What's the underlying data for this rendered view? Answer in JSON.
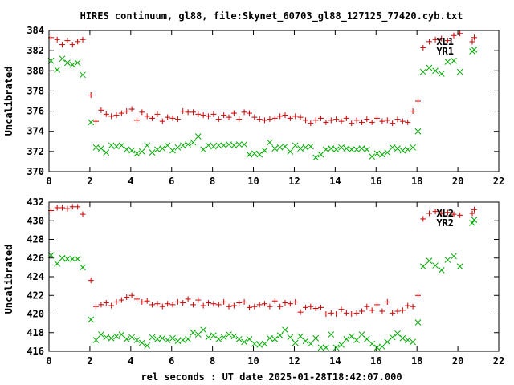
{
  "chart_data": [
    {
      "type": "scatter",
      "title": "HIRES continuum, gl88, file:Skynet_60703_gl88_127125_77420.cyb.txt",
      "xlabel": "",
      "ylabel": "Uncalibrated",
      "xlim": [
        0,
        22
      ],
      "ylim": [
        370,
        384
      ],
      "xticks": [
        0,
        2,
        4,
        6,
        8,
        10,
        12,
        14,
        16,
        18,
        20,
        22
      ],
      "yticks": [
        370,
        372,
        374,
        376,
        378,
        380,
        382,
        384
      ],
      "grid": false,
      "legend_position": "top-right",
      "series": [
        {
          "name": "XL1",
          "marker": "plus",
          "color": "#cc0000",
          "x": [
            0.1,
            0.4,
            0.65,
            0.9,
            1.15,
            1.4,
            1.65,
            2.05,
            2.3,
            2.55,
            2.8,
            3.05,
            3.3,
            3.55,
            3.8,
            4.05,
            4.3,
            4.55,
            4.8,
            5.05,
            5.3,
            5.55,
            5.8,
            6.05,
            6.3,
            6.55,
            6.8,
            7.05,
            7.3,
            7.55,
            7.8,
            8.05,
            8.3,
            8.55,
            8.8,
            9.05,
            9.3,
            9.55,
            9.8,
            10.05,
            10.3,
            10.55,
            10.8,
            11.05,
            11.3,
            11.55,
            11.8,
            12.05,
            12.3,
            12.55,
            12.8,
            13.05,
            13.3,
            13.55,
            13.8,
            14.05,
            14.3,
            14.55,
            14.8,
            15.05,
            15.3,
            15.55,
            15.8,
            16.05,
            16.3,
            16.55,
            16.8,
            17.05,
            17.3,
            17.55,
            17.8,
            18.05,
            18.3,
            18.6,
            18.9,
            19.2,
            19.5,
            19.8,
            20.1,
            20.8
          ],
          "y": [
            383.3,
            383.1,
            382.6,
            383.0,
            382.6,
            382.9,
            383.1,
            377.6,
            375.0,
            376.1,
            375.7,
            375.5,
            375.6,
            375.8,
            376.0,
            376.2,
            375.1,
            375.9,
            375.5,
            375.3,
            375.7,
            375.0,
            375.4,
            375.3,
            375.2,
            376.0,
            375.9,
            375.9,
            375.7,
            375.6,
            375.5,
            375.7,
            375.2,
            375.6,
            375.4,
            375.8,
            375.2,
            375.9,
            375.8,
            375.4,
            375.2,
            375.1,
            375.2,
            375.3,
            375.5,
            375.6,
            375.3,
            375.5,
            375.4,
            375.1,
            374.8,
            375.1,
            375.3,
            374.9,
            375.1,
            375.2,
            375.0,
            375.3,
            374.8,
            375.1,
            374.9,
            375.2,
            374.9,
            375.3,
            375.0,
            375.1,
            374.8,
            375.2,
            375.0,
            374.9,
            376.0,
            377.0,
            382.3,
            382.9,
            383.1,
            383.2,
            383.0,
            383.5,
            383.7,
            383.3
          ]
        },
        {
          "name": "YR1",
          "marker": "x",
          "color": "#00aa00",
          "x": [
            0.1,
            0.4,
            0.65,
            0.9,
            1.15,
            1.4,
            1.65,
            2.05,
            2.3,
            2.55,
            2.8,
            3.05,
            3.3,
            3.55,
            3.8,
            4.05,
            4.3,
            4.55,
            4.8,
            5.05,
            5.3,
            5.55,
            5.8,
            6.05,
            6.3,
            6.55,
            6.8,
            7.05,
            7.3,
            7.55,
            7.8,
            8.05,
            8.3,
            8.55,
            8.8,
            9.05,
            9.3,
            9.55,
            9.8,
            10.05,
            10.3,
            10.55,
            10.8,
            11.05,
            11.3,
            11.55,
            11.8,
            12.05,
            12.3,
            12.55,
            12.8,
            13.05,
            13.3,
            13.55,
            13.8,
            14.05,
            14.3,
            14.55,
            14.8,
            15.05,
            15.3,
            15.55,
            15.8,
            16.05,
            16.3,
            16.55,
            16.8,
            17.05,
            17.3,
            17.55,
            17.8,
            18.05,
            18.3,
            18.6,
            18.9,
            19.2,
            19.5,
            19.8,
            20.1,
            20.8
          ],
          "y": [
            381.0,
            380.1,
            381.2,
            380.8,
            380.6,
            380.8,
            379.6,
            374.9,
            372.4,
            372.3,
            371.9,
            372.6,
            372.5,
            372.6,
            372.2,
            372.1,
            371.8,
            372.0,
            372.6,
            371.9,
            372.2,
            372.3,
            372.6,
            372.1,
            372.4,
            372.6,
            372.7,
            372.9,
            373.5,
            372.2,
            372.6,
            372.5,
            372.6,
            372.6,
            372.7,
            372.6,
            372.7,
            372.7,
            371.7,
            371.8,
            371.7,
            372.1,
            372.9,
            372.3,
            372.4,
            372.5,
            372.0,
            372.6,
            372.3,
            372.4,
            372.5,
            371.4,
            371.7,
            372.2,
            372.3,
            372.2,
            372.4,
            372.3,
            372.2,
            372.2,
            372.3,
            372.2,
            371.5,
            371.8,
            371.7,
            371.9,
            372.4,
            372.3,
            372.1,
            372.2,
            372.4,
            374.0,
            379.9,
            380.3,
            380.0,
            379.7,
            380.9,
            381.0,
            379.9,
            382.1
          ]
        }
      ]
    },
    {
      "type": "scatter",
      "title": "",
      "xlabel": "rel seconds : UT date 2025-01-28T18:42:07.000",
      "ylabel": "Uncalibrated",
      "xlim": [
        0,
        22
      ],
      "ylim": [
        416,
        432
      ],
      "xticks": [
        0,
        2,
        4,
        6,
        8,
        10,
        12,
        14,
        16,
        18,
        20,
        22
      ],
      "yticks": [
        416,
        418,
        420,
        422,
        424,
        426,
        428,
        430,
        432
      ],
      "grid": false,
      "legend_position": "top-right",
      "series": [
        {
          "name": "XL2",
          "marker": "plus",
          "color": "#cc0000",
          "x": [
            0.1,
            0.4,
            0.65,
            0.9,
            1.15,
            1.4,
            1.65,
            2.05,
            2.3,
            2.55,
            2.8,
            3.05,
            3.3,
            3.55,
            3.8,
            4.05,
            4.3,
            4.55,
            4.8,
            5.05,
            5.3,
            5.55,
            5.8,
            6.05,
            6.3,
            6.55,
            6.8,
            7.05,
            7.3,
            7.55,
            7.8,
            8.05,
            8.3,
            8.55,
            8.8,
            9.05,
            9.3,
            9.55,
            9.8,
            10.05,
            10.3,
            10.55,
            10.8,
            11.05,
            11.3,
            11.55,
            11.8,
            12.05,
            12.3,
            12.55,
            12.8,
            13.05,
            13.3,
            13.55,
            13.8,
            14.05,
            14.3,
            14.55,
            14.8,
            15.05,
            15.3,
            15.55,
            15.8,
            16.05,
            16.3,
            16.55,
            16.8,
            17.05,
            17.3,
            17.55,
            17.8,
            18.05,
            18.3,
            18.6,
            18.9,
            19.2,
            19.5,
            19.8,
            20.1,
            20.8
          ],
          "y": [
            431.1,
            431.4,
            431.4,
            431.3,
            431.5,
            431.5,
            430.7,
            423.6,
            420.8,
            421.0,
            421.2,
            420.9,
            421.3,
            421.5,
            421.8,
            422.0,
            421.6,
            421.3,
            421.4,
            421.0,
            421.1,
            420.8,
            421.1,
            421.0,
            421.3,
            421.2,
            421.6,
            421.0,
            421.5,
            420.9,
            421.2,
            421.1,
            421.0,
            421.3,
            420.8,
            420.9,
            421.2,
            421.3,
            420.7,
            420.8,
            421.0,
            421.1,
            420.8,
            421.4,
            420.8,
            421.2,
            421.1,
            421.3,
            420.2,
            420.7,
            420.8,
            420.6,
            420.7,
            420.0,
            420.1,
            420.0,
            420.5,
            420.1,
            420.0,
            420.1,
            420.3,
            420.8,
            420.4,
            421.0,
            420.3,
            421.3,
            420.1,
            420.3,
            420.4,
            420.9,
            420.8,
            422.0,
            430.2,
            430.8,
            431.0,
            430.8,
            430.9,
            430.7,
            430.6,
            431.2
          ]
        },
        {
          "name": "YR2",
          "marker": "x",
          "color": "#00aa00",
          "x": [
            0.1,
            0.4,
            0.65,
            0.9,
            1.15,
            1.4,
            1.65,
            2.05,
            2.3,
            2.55,
            2.8,
            3.05,
            3.3,
            3.55,
            3.8,
            4.05,
            4.3,
            4.55,
            4.8,
            5.05,
            5.3,
            5.55,
            5.8,
            6.05,
            6.3,
            6.55,
            6.8,
            7.05,
            7.3,
            7.55,
            7.8,
            8.05,
            8.3,
            8.55,
            8.8,
            9.05,
            9.3,
            9.55,
            9.8,
            10.05,
            10.3,
            10.55,
            10.8,
            11.05,
            11.3,
            11.55,
            11.8,
            12.05,
            12.3,
            12.55,
            12.8,
            13.05,
            13.3,
            13.55,
            13.8,
            14.05,
            14.3,
            14.55,
            14.8,
            15.05,
            15.3,
            15.55,
            15.8,
            16.05,
            16.3,
            16.55,
            16.8,
            17.05,
            17.3,
            17.55,
            17.8,
            18.05,
            18.3,
            18.6,
            18.9,
            19.2,
            19.5,
            19.8,
            20.1,
            20.8
          ],
          "y": [
            426.3,
            425.4,
            426.0,
            425.9,
            425.9,
            425.9,
            425.0,
            419.4,
            417.2,
            417.8,
            417.5,
            417.4,
            417.6,
            417.8,
            417.3,
            417.5,
            417.2,
            416.9,
            416.6,
            417.5,
            417.3,
            417.4,
            417.2,
            417.4,
            417.1,
            417.2,
            417.3,
            418.0,
            417.8,
            418.3,
            417.5,
            417.7,
            417.3,
            417.5,
            417.8,
            417.6,
            417.3,
            417.0,
            417.3,
            416.8,
            416.7,
            416.8,
            417.4,
            417.3,
            417.7,
            418.3,
            417.5,
            416.9,
            417.6,
            417.1,
            416.8,
            417.4,
            416.4,
            416.4,
            417.8,
            416.4,
            416.7,
            417.3,
            417.6,
            417.2,
            417.8,
            417.3,
            416.8,
            416.4,
            416.5,
            417.0,
            417.5,
            417.9,
            417.4,
            417.2,
            417.0,
            419.1,
            425.1,
            425.7,
            425.2,
            424.7,
            425.8,
            426.2,
            425.1,
            430.1
          ]
        }
      ]
    }
  ]
}
